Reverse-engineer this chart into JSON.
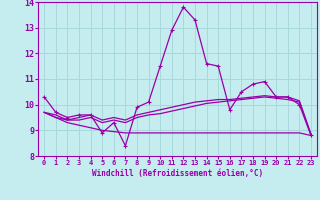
{
  "xlabel": "Windchill (Refroidissement éolien,°C)",
  "background_color": "#c5ecee",
  "grid_color": "#a8d8dc",
  "line_color": "#9900aa",
  "x": [
    0,
    1,
    2,
    3,
    4,
    5,
    6,
    7,
    8,
    9,
    10,
    11,
    12,
    13,
    14,
    15,
    16,
    17,
    18,
    19,
    20,
    21,
    22,
    23
  ],
  "line_spiky": [
    10.3,
    9.7,
    9.5,
    9.6,
    9.6,
    8.9,
    9.3,
    8.4,
    9.9,
    10.1,
    11.5,
    12.9,
    13.8,
    13.3,
    11.6,
    11.5,
    9.8,
    10.5,
    10.8,
    10.9,
    10.3,
    10.3,
    10.0,
    8.8
  ],
  "line_rise1": [
    9.7,
    9.6,
    9.4,
    9.5,
    9.6,
    9.4,
    9.5,
    9.4,
    9.6,
    9.7,
    9.8,
    9.9,
    10.0,
    10.1,
    10.15,
    10.2,
    10.2,
    10.25,
    10.3,
    10.35,
    10.3,
    10.3,
    10.15,
    8.85
  ],
  "line_rise2": [
    9.7,
    9.5,
    9.4,
    9.4,
    9.5,
    9.3,
    9.4,
    9.3,
    9.5,
    9.6,
    9.65,
    9.75,
    9.85,
    9.95,
    10.05,
    10.1,
    10.15,
    10.2,
    10.25,
    10.3,
    10.25,
    10.2,
    10.1,
    8.82
  ],
  "line_flat": [
    9.7,
    9.5,
    9.3,
    9.2,
    9.1,
    9.0,
    8.95,
    8.9,
    8.9,
    8.9,
    8.9,
    8.9,
    8.9,
    8.9,
    8.9,
    8.9,
    8.9,
    8.9,
    8.9,
    8.9,
    8.9,
    8.9,
    8.9,
    8.8
  ],
  "ylim": [
    8,
    14
  ],
  "yticks": [
    8,
    9,
    10,
    11,
    12,
    13,
    14
  ],
  "xlim": [
    -0.5,
    23.5
  ]
}
